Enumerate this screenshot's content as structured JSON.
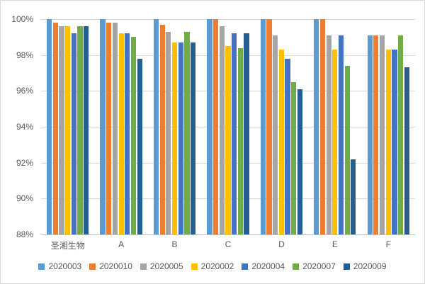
{
  "chart": {
    "background_color": "#FFFFFF",
    "frame_border_color": "#D9D9D9",
    "grid_color": "#D9D9D9",
    "axis_line_color": "#BFBFBF",
    "text_color": "#595959"
  },
  "chart_data": {
    "type": "bar",
    "title": "",
    "xlabel": "",
    "ylabel": "",
    "categories": [
      "圣湘生物",
      "A",
      "B",
      "C",
      "D",
      "E",
      "F"
    ],
    "series": [
      {
        "name": "2020003",
        "color": "#5B9BD5",
        "values": [
          100,
          100,
          100,
          100,
          100,
          100,
          99.1
        ]
      },
      {
        "name": "2020010",
        "color": "#ED7D31",
        "values": [
          99.8,
          99.8,
          99.7,
          100,
          100,
          100,
          99.1
        ]
      },
      {
        "name": "2020005",
        "color": "#A5A5A5",
        "values": [
          99.6,
          99.8,
          99.3,
          99.6,
          99.1,
          99.1,
          99.1
        ]
      },
      {
        "name": "2020002",
        "color": "#FFC000",
        "values": [
          99.6,
          99.2,
          98.7,
          98.5,
          98.3,
          98.3,
          98.3
        ]
      },
      {
        "name": "2020004",
        "color": "#4472C4",
        "values": [
          99.2,
          99.2,
          98.7,
          99.2,
          97.8,
          99.1,
          98.3
        ]
      },
      {
        "name": "2020007",
        "color": "#70AD47",
        "values": [
          99.6,
          99.0,
          99.3,
          98.4,
          96.5,
          97.4,
          99.1
        ]
      },
      {
        "name": "2020009",
        "color": "#255E91",
        "values": [
          99.6,
          97.8,
          98.7,
          99.2,
          96.1,
          92.2,
          97.3
        ]
      }
    ],
    "ylim": [
      88,
      100
    ],
    "ytick_step": 2,
    "ytick_labels": [
      "100%",
      "98%",
      "96%",
      "94%",
      "92%",
      "90%",
      "88%"
    ],
    "grid": true,
    "legend_position": "bottom"
  }
}
